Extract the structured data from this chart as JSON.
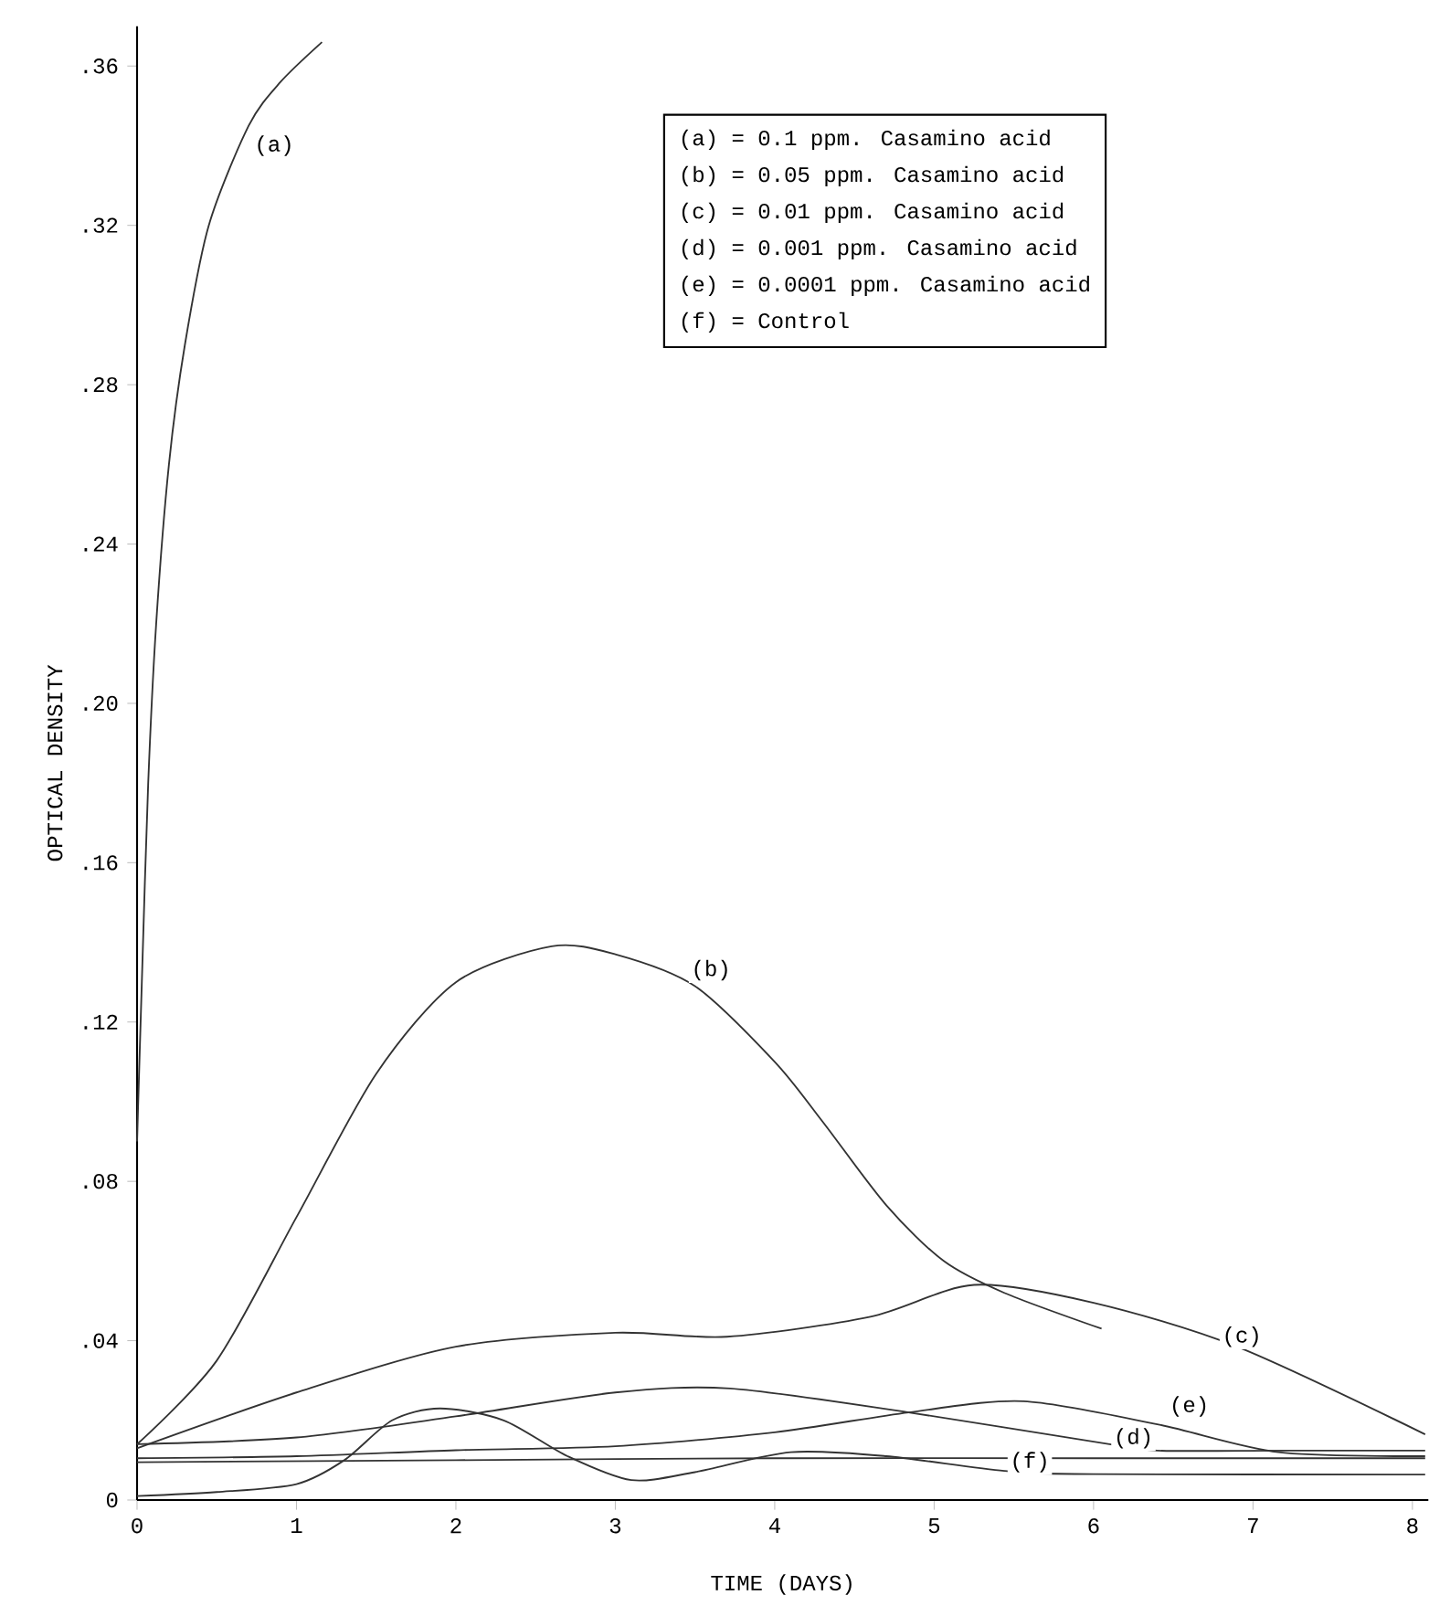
{
  "chart_data": {
    "type": "line",
    "xlabel": "TIME (DAYS)",
    "ylabel": "OPTICAL DENSITY",
    "xlim": [
      0,
      8.1
    ],
    "ylim": [
      0,
      0.37
    ],
    "xticks": [
      0,
      1,
      2,
      3,
      4,
      5,
      6,
      7,
      8
    ],
    "yticks": [
      0,
      {
        "value": 0.04,
        "label": ".04"
      },
      {
        "value": 0.08,
        "label": ".08"
      },
      {
        "value": 0.12,
        "label": ".12"
      },
      {
        "value": 0.16,
        "label": ".16"
      },
      {
        "value": 0.2,
        "label": ".20"
      },
      {
        "value": 0.24,
        "label": ".24"
      },
      {
        "value": 0.28,
        "label": ".28"
      },
      {
        "value": 0.32,
        "label": ".32"
      },
      {
        "value": 0.36,
        "label": ".36"
      }
    ],
    "marker": "none",
    "line_style": "solid",
    "series": [
      {
        "color": "#333333",
        "x": [
          0,
          0.03,
          0.07,
          0.12,
          0.2,
          0.3,
          0.45,
          0.7,
          0.9,
          1.16
        ],
        "values": [
          0.09,
          0.13,
          0.18,
          0.22,
          0.26,
          0.29,
          0.32,
          0.345,
          0.356,
          0.366
        ]
      },
      {
        "color": "#333333",
        "x": [
          0,
          0.5,
          1,
          1.5,
          2,
          2.6,
          3,
          3.5,
          4,
          4.3,
          4.7,
          5.06,
          5.44,
          6.05
        ],
        "values": [
          0.014,
          0.035,
          0.071,
          0.107,
          0.13,
          0.139,
          0.137,
          0.129,
          0.11,
          0.095,
          0.074,
          0.06,
          0.052,
          0.043
        ]
      },
      {
        "color": "#333333",
        "x": [
          0,
          1,
          2,
          3,
          3.7,
          4.6,
          5.25,
          6,
          6.9,
          8.08
        ],
        "values": [
          0.013,
          0.027,
          0.0385,
          0.042,
          0.041,
          0.046,
          0.054,
          0.0495,
          0.0385,
          0.0165
        ]
      },
      {
        "color": "#333333",
        "x": [
          0,
          1,
          2,
          3,
          3.72,
          4.84,
          6.1,
          6.4,
          7.2,
          8.08
        ],
        "values": [
          0.014,
          0.0157,
          0.021,
          0.027,
          0.028,
          0.022,
          0.014,
          0.0124,
          0.0124,
          0.0124
        ]
      },
      {
        "color": "#333333",
        "x": [
          0,
          1,
          2,
          3,
          4,
          4.84,
          5.56,
          6.4,
          7.16,
          8.08
        ],
        "values": [
          0.0105,
          0.011,
          0.0125,
          0.0135,
          0.017,
          0.022,
          0.0248,
          0.019,
          0.012,
          0.011
        ]
      },
      {
        "color": "#333333",
        "x": [
          0,
          0.5,
          1,
          1.3,
          1.6,
          1.9,
          2.3,
          2.7,
          3.1,
          3.5,
          4.1,
          4.7,
          5.44,
          6,
          8.08
        ],
        "values": [
          0.001,
          0.002,
          0.004,
          0.01,
          0.02,
          0.023,
          0.02,
          0.011,
          0.005,
          0.007,
          0.012,
          0.011,
          0.0073,
          0.0065,
          0.0064
        ]
      },
      {
        "color": "#333333",
        "x": [
          0,
          2,
          4,
          6,
          8.08
        ],
        "values": [
          0.0095,
          0.01,
          0.0105,
          0.0105,
          0.0105
        ]
      }
    ],
    "annotations": [
      "(a) = 0.1 ppm. Casamino acid",
      "(b) = 0.05 ppm. Casamino acid",
      "(c) = 0.01 ppm. Casamino acid",
      "(d) = 0.001 ppm. Casamino acid",
      "(e) = 0.0001 ppm. Casamino acid",
      "(f) = Control",
      {
        "text": "(a)",
        "x": 0.86,
        "y": 0.34
      },
      {
        "text": "(b)",
        "x": 3.6,
        "y": 0.133
      },
      {
        "text": "(c)",
        "x": 6.93,
        "y": 0.041
      },
      {
        "text": "(e)",
        "x": 6.6,
        "y": 0.0235
      },
      {
        "text": "(d)",
        "x": 6.25,
        "y": 0.0155
      },
      {
        "text": "(f)",
        "x": 5.6,
        "y": 0.0095
      }
    ]
  }
}
